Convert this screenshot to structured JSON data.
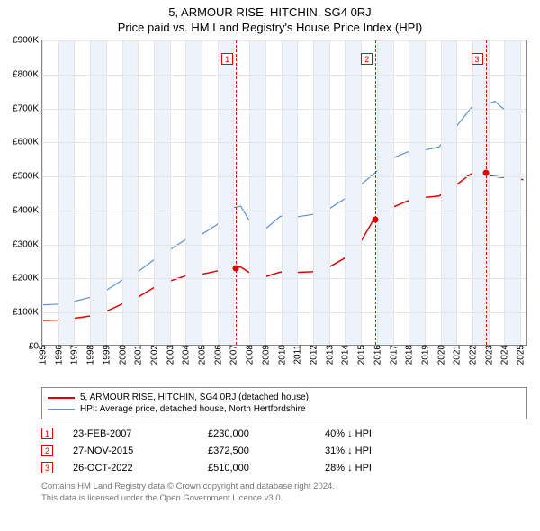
{
  "title": "5, ARMOUR RISE, HITCHIN, SG4 0RJ",
  "subtitle": "Price paid vs. HM Land Registry's House Price Index (HPI)",
  "chart": {
    "type": "line",
    "background_color": "#ffffff",
    "grid_color": "#e5e5e5",
    "alt_band_color": "#eef3fb",
    "axis_color": "#888888",
    "x_min_year": 1995,
    "x_max_year": 2025.5,
    "x_ticks": [
      1995,
      1996,
      1997,
      1998,
      1999,
      2000,
      2001,
      2002,
      2003,
      2004,
      2005,
      2006,
      2007,
      2008,
      2009,
      2010,
      2011,
      2012,
      2013,
      2014,
      2015,
      2016,
      2017,
      2018,
      2019,
      2020,
      2021,
      2022,
      2023,
      2024,
      2025
    ],
    "y_min": 0,
    "y_max": 900,
    "y_ticks": [
      0,
      100,
      200,
      300,
      400,
      500,
      600,
      700,
      800,
      900
    ],
    "y_tick_labels": [
      "£0",
      "£100K",
      "£200K",
      "£300K",
      "£400K",
      "£500K",
      "£600K",
      "£700K",
      "£800K",
      "£900K"
    ],
    "tick_fontsize": 10,
    "series": [
      {
        "name": "price_paid",
        "label": "5, ARMOUR RISE, HITCHIN, SG4 0RJ (detached house)",
        "color": "#e20000",
        "line_width": 1.5,
        "points": [
          [
            1995,
            72
          ],
          [
            1996,
            73
          ],
          [
            1997,
            78
          ],
          [
            1998,
            85
          ],
          [
            1999,
            98
          ],
          [
            2000,
            120
          ],
          [
            2001,
            140
          ],
          [
            2002,
            168
          ],
          [
            2003,
            188
          ],
          [
            2004,
            203
          ],
          [
            2005,
            208
          ],
          [
            2006,
            218
          ],
          [
            2007,
            230
          ],
          [
            2007.5,
            230
          ],
          [
            2008,
            215
          ],
          [
            2009,
            200
          ],
          [
            2009.5,
            208
          ],
          [
            2010,
            215
          ],
          [
            2011,
            214
          ],
          [
            2012,
            216
          ],
          [
            2013,
            228
          ],
          [
            2014,
            255
          ],
          [
            2015,
            300
          ],
          [
            2015.9,
            372
          ],
          [
            2016,
            370
          ],
          [
            2017,
            405
          ],
          [
            2018,
            425
          ],
          [
            2019,
            435
          ],
          [
            2020,
            440
          ],
          [
            2021,
            470
          ],
          [
            2022,
            505
          ],
          [
            2022.82,
            510
          ],
          [
            2023,
            500
          ],
          [
            2024,
            495
          ],
          [
            2024.5,
            498
          ],
          [
            2025,
            490
          ],
          [
            2025.3,
            488
          ]
        ]
      },
      {
        "name": "hpi",
        "label": "HPI: Average price, detached house, North Hertfordshire",
        "color": "#5b8fd6",
        "line_width": 1.2,
        "points": [
          [
            1995,
            118
          ],
          [
            1996,
            120
          ],
          [
            1997,
            128
          ],
          [
            1998,
            140
          ],
          [
            1999,
            160
          ],
          [
            2000,
            190
          ],
          [
            2001,
            215
          ],
          [
            2002,
            250
          ],
          [
            2003,
            280
          ],
          [
            2004,
            310
          ],
          [
            2005,
            325
          ],
          [
            2006,
            355
          ],
          [
            2007,
            405
          ],
          [
            2007.5,
            410
          ],
          [
            2008,
            370
          ],
          [
            2009,
            340
          ],
          [
            2009.5,
            360
          ],
          [
            2010,
            380
          ],
          [
            2011,
            378
          ],
          [
            2012,
            385
          ],
          [
            2013,
            400
          ],
          [
            2014,
            430
          ],
          [
            2015,
            470
          ],
          [
            2016,
            510
          ],
          [
            2017,
            550
          ],
          [
            2018,
            570
          ],
          [
            2019,
            575
          ],
          [
            2020,
            585
          ],
          [
            2021,
            640
          ],
          [
            2022,
            700
          ],
          [
            2022.5,
            715
          ],
          [
            2023,
            710
          ],
          [
            2023.5,
            720
          ],
          [
            2024,
            700
          ],
          [
            2024.5,
            695
          ],
          [
            2025,
            690
          ],
          [
            2025.3,
            688
          ]
        ]
      }
    ],
    "markers": [
      {
        "n": "1",
        "year": 2007.15,
        "value": 230
      },
      {
        "n": "2",
        "year": 2015.91,
        "value": 372.5
      },
      {
        "n": "3",
        "year": 2022.82,
        "value": 510
      }
    ]
  },
  "legend": {
    "items": [
      {
        "color": "#e20000",
        "label": "5, ARMOUR RISE, HITCHIN, SG4 0RJ (detached house)"
      },
      {
        "color": "#5b8fd6",
        "label": "HPI: Average price, detached house, North Hertfordshire"
      }
    ]
  },
  "events": [
    {
      "n": "1",
      "date": "23-FEB-2007",
      "price": "£230,000",
      "hpi": "40% ↓ HPI"
    },
    {
      "n": "2",
      "date": "27-NOV-2015",
      "price": "£372,500",
      "hpi": "31% ↓ HPI"
    },
    {
      "n": "3",
      "date": "26-OCT-2022",
      "price": "£510,000",
      "hpi": "28% ↓ HPI"
    }
  ],
  "footer_line1": "Contains HM Land Registry data © Crown copyright and database right 2024.",
  "footer_line2": "This data is licensed under the Open Government Licence v3.0."
}
